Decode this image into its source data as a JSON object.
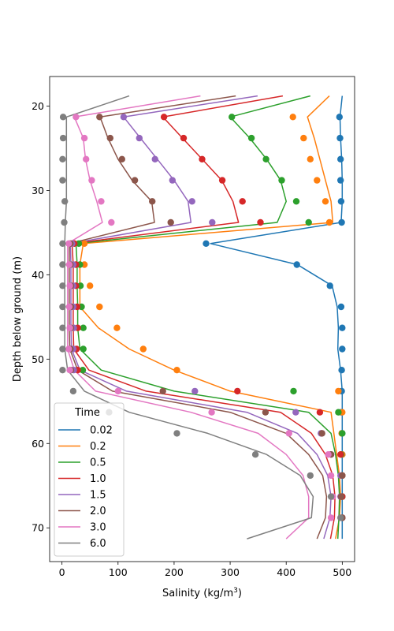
{
  "chart_data": {
    "type": "line",
    "xlabel": "Salinity (kg/m",
    "xlabel_sup": "3",
    "xlabel_end": ")",
    "ylabel": "Depth below ground (m)",
    "xlim": [
      -22,
      522
    ],
    "ylim": [
      74.0,
      16.5
    ],
    "y_inverted": true,
    "x_ticks": [
      0,
      100,
      200,
      300,
      400,
      500
    ],
    "y_ticks": [
      20,
      30,
      40,
      50,
      60,
      70
    ],
    "grid": false,
    "legend": {
      "title": "Time",
      "placement": "lower-left"
    },
    "depths": [
      21.3,
      23.8,
      26.3,
      28.8,
      31.3,
      33.8,
      36.3,
      38.8,
      41.3,
      43.8,
      46.3,
      48.8,
      51.3,
      53.8,
      56.3,
      58.8,
      61.3,
      63.8,
      66.3,
      68.8
    ],
    "series": [
      {
        "name": "0.02",
        "color": "#1f77b4",
        "line": [
          [
            500,
            18.8
          ],
          [
            496,
            21.3
          ],
          [
            497,
            23.8
          ],
          [
            499,
            26.3
          ],
          [
            500,
            28.8
          ],
          [
            500,
            31.3
          ],
          [
            498,
            33.8
          ],
          [
            265,
            36.3
          ],
          [
            420,
            38.8
          ],
          [
            482,
            41.3
          ],
          [
            491,
            43.8
          ],
          [
            493,
            46.3
          ],
          [
            492,
            48.8
          ],
          [
            497,
            51.3
          ],
          [
            500,
            53.8
          ],
          [
            500,
            56.3
          ],
          [
            500,
            58.8
          ],
          [
            500,
            61.3
          ],
          [
            500,
            63.8
          ],
          [
            500,
            66.3
          ],
          [
            500,
            68.8
          ],
          [
            500,
            71.3
          ]
        ],
        "points": [
          495,
          496,
          497,
          497,
          498,
          499,
          257,
          419,
          478,
          498,
          500,
          500,
          499,
          499,
          498,
          500,
          500,
          500,
          500,
          500
        ]
      },
      {
        "name": "0.2",
        "color": "#ff7f0e",
        "line": [
          [
            477,
            18.8
          ],
          [
            438,
            21.3
          ],
          [
            450,
            23.8
          ],
          [
            460,
            26.3
          ],
          [
            470,
            28.8
          ],
          [
            480,
            31.3
          ],
          [
            483,
            33.8
          ],
          [
            38,
            36.3
          ],
          [
            32,
            38.8
          ],
          [
            32,
            41.3
          ],
          [
            32,
            43.8
          ],
          [
            65,
            46.3
          ],
          [
            120,
            48.8
          ],
          [
            200,
            51.3
          ],
          [
            300,
            53.8
          ],
          [
            480,
            56.3
          ],
          [
            485,
            58.8
          ],
          [
            490,
            61.3
          ],
          [
            495,
            63.8
          ],
          [
            497,
            66.3
          ],
          [
            495,
            68.8
          ],
          [
            488,
            71.3
          ]
        ],
        "points": [
          412,
          431,
          443,
          455,
          470,
          477,
          40,
          40,
          50,
          67,
          98,
          145,
          205,
          493,
          500,
          499,
          500,
          500,
          499,
          500
        ]
      },
      {
        "name": "0.5",
        "color": "#2ca02c",
        "line": [
          [
            443,
            18.8
          ],
          [
            300,
            21.3
          ],
          [
            335,
            23.8
          ],
          [
            365,
            26.3
          ],
          [
            390,
            28.8
          ],
          [
            400,
            31.3
          ],
          [
            384,
            33.8
          ],
          [
            25,
            36.3
          ],
          [
            27,
            38.8
          ],
          [
            27,
            41.3
          ],
          [
            28,
            43.8
          ],
          [
            28,
            46.3
          ],
          [
            32,
            48.8
          ],
          [
            70,
            51.3
          ],
          [
            200,
            53.8
          ],
          [
            440,
            56.3
          ],
          [
            480,
            58.8
          ],
          [
            488,
            61.3
          ],
          [
            493,
            63.8
          ],
          [
            495,
            66.3
          ],
          [
            494,
            68.8
          ],
          [
            492,
            71.3
          ]
        ],
        "points": [
          303,
          338,
          364,
          392,
          418,
          440,
          30,
          32,
          33,
          35,
          38,
          38,
          37,
          413,
          493,
          500,
          498,
          500,
          500,
          500
        ]
      },
      {
        "name": "1.0",
        "color": "#d62728",
        "line": [
          [
            394,
            18.8
          ],
          [
            180,
            21.3
          ],
          [
            215,
            23.8
          ],
          [
            250,
            26.3
          ],
          [
            285,
            28.8
          ],
          [
            305,
            31.3
          ],
          [
            315,
            33.8
          ],
          [
            18,
            36.3
          ],
          [
            20,
            38.8
          ],
          [
            20,
            41.3
          ],
          [
            20,
            43.8
          ],
          [
            20,
            46.3
          ],
          [
            21,
            48.8
          ],
          [
            48,
            51.3
          ],
          [
            150,
            53.8
          ],
          [
            390,
            56.3
          ],
          [
            445,
            58.8
          ],
          [
            470,
            61.3
          ],
          [
            483,
            63.8
          ],
          [
            487,
            66.3
          ],
          [
            486,
            68.8
          ],
          [
            479,
            71.3
          ]
        ],
        "points": [
          182,
          217,
          250,
          286,
          322,
          354,
          22,
          25,
          25,
          27,
          28,
          26,
          28,
          313,
          460,
          463,
          497,
          500,
          500,
          500
        ]
      },
      {
        "name": "1.5",
        "color": "#9467bd",
        "line": [
          [
            349,
            18.8
          ],
          [
            110,
            21.3
          ],
          [
            140,
            23.8
          ],
          [
            170,
            26.3
          ],
          [
            200,
            28.8
          ],
          [
            225,
            31.3
          ],
          [
            230,
            33.8
          ],
          [
            15,
            36.3
          ],
          [
            16,
            38.8
          ],
          [
            16,
            41.3
          ],
          [
            16,
            43.8
          ],
          [
            16,
            46.3
          ],
          [
            17,
            48.8
          ],
          [
            32,
            51.3
          ],
          [
            115,
            53.8
          ],
          [
            330,
            56.3
          ],
          [
            420,
            58.8
          ],
          [
            455,
            61.3
          ],
          [
            474,
            63.8
          ],
          [
            480,
            66.3
          ],
          [
            478,
            68.8
          ],
          [
            467,
            71.3
          ]
        ],
        "points": [
          110,
          138,
          166,
          197,
          232,
          268,
          18,
          20,
          20,
          20,
          21,
          20,
          21,
          237,
          417,
          462,
          480,
          497,
          497,
          500
        ]
      },
      {
        "name": "2.0",
        "color": "#8c564b",
        "line": [
          [
            310,
            18.8
          ],
          [
            68,
            21.3
          ],
          [
            82,
            23.8
          ],
          [
            100,
            26.3
          ],
          [
            125,
            28.8
          ],
          [
            160,
            31.3
          ],
          [
            165,
            33.8
          ],
          [
            13,
            36.3
          ],
          [
            13,
            38.8
          ],
          [
            13,
            41.3
          ],
          [
            13,
            43.8
          ],
          [
            13,
            46.3
          ],
          [
            14,
            48.8
          ],
          [
            28,
            51.3
          ],
          [
            90,
            53.8
          ],
          [
            300,
            56.3
          ],
          [
            400,
            58.8
          ],
          [
            440,
            61.3
          ],
          [
            465,
            63.8
          ],
          [
            472,
            66.3
          ],
          [
            470,
            68.8
          ],
          [
            455,
            71.3
          ]
        ],
        "points": [
          67,
          86,
          107,
          130,
          161,
          194,
          15,
          15,
          16,
          16,
          16,
          15,
          16,
          180,
          363,
          464,
          480,
          500,
          498,
          500
        ]
      },
      {
        "name": "3.0",
        "color": "#e377c2",
        "line": [
          [
            247,
            18.8
          ],
          [
            22,
            21.3
          ],
          [
            38,
            23.8
          ],
          [
            42,
            26.3
          ],
          [
            50,
            28.8
          ],
          [
            62,
            31.3
          ],
          [
            72,
            33.8
          ],
          [
            10,
            36.3
          ],
          [
            10,
            38.8
          ],
          [
            10,
            41.3
          ],
          [
            10,
            43.8
          ],
          [
            10,
            46.3
          ],
          [
            10,
            48.8
          ],
          [
            22,
            51.3
          ],
          [
            60,
            53.8
          ],
          [
            230,
            56.3
          ],
          [
            350,
            58.8
          ],
          [
            400,
            61.3
          ],
          [
            430,
            63.8
          ],
          [
            440,
            66.3
          ],
          [
            440,
            68.8
          ],
          [
            400,
            71.3
          ]
        ],
        "points": [
          25,
          40,
          43,
          53,
          70,
          88,
          12,
          13,
          14,
          13,
          14,
          12,
          14,
          100,
          267,
          405,
          475,
          480,
          483,
          480
        ]
      },
      {
        "name": "6.0",
        "color": "#7f7f7f",
        "line": [
          [
            120,
            18.8
          ],
          [
            8,
            21.3
          ],
          [
            8,
            23.8
          ],
          [
            8,
            26.3
          ],
          [
            8,
            28.8
          ],
          [
            8,
            31.3
          ],
          [
            6,
            33.8
          ],
          [
            5,
            36.3
          ],
          [
            5,
            38.8
          ],
          [
            5,
            41.3
          ],
          [
            5,
            43.8
          ],
          [
            5,
            46.3
          ],
          [
            5,
            48.8
          ],
          [
            10,
            51.3
          ],
          [
            40,
            53.8
          ],
          [
            120,
            56.3
          ],
          [
            260,
            58.8
          ],
          [
            365,
            61.3
          ],
          [
            425,
            63.8
          ],
          [
            448,
            66.3
          ],
          [
            445,
            68.8
          ],
          [
            330,
            71.3
          ]
        ],
        "points": [
          2,
          2,
          1,
          1,
          5,
          4,
          1,
          1,
          1,
          1,
          1,
          1,
          1,
          20,
          84,
          205,
          345,
          443,
          480,
          497
        ]
      }
    ]
  }
}
